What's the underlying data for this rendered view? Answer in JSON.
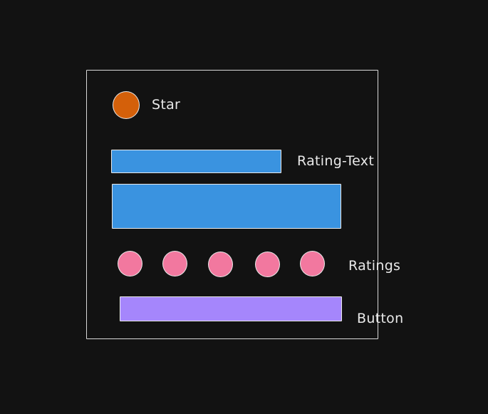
{
  "labels": {
    "star": "Star",
    "rating_text": "Rating-Text",
    "ratings": "Ratings",
    "button": "Button"
  },
  "colors": {
    "background": "#121212",
    "stroke": "#e9e9e9",
    "star_fill": "#d4600a",
    "text_bar_fill": "#3a93e0",
    "rating_dot_fill": "#f2789f",
    "button_fill": "#a586fc"
  },
  "ratings": {
    "count": 5
  }
}
